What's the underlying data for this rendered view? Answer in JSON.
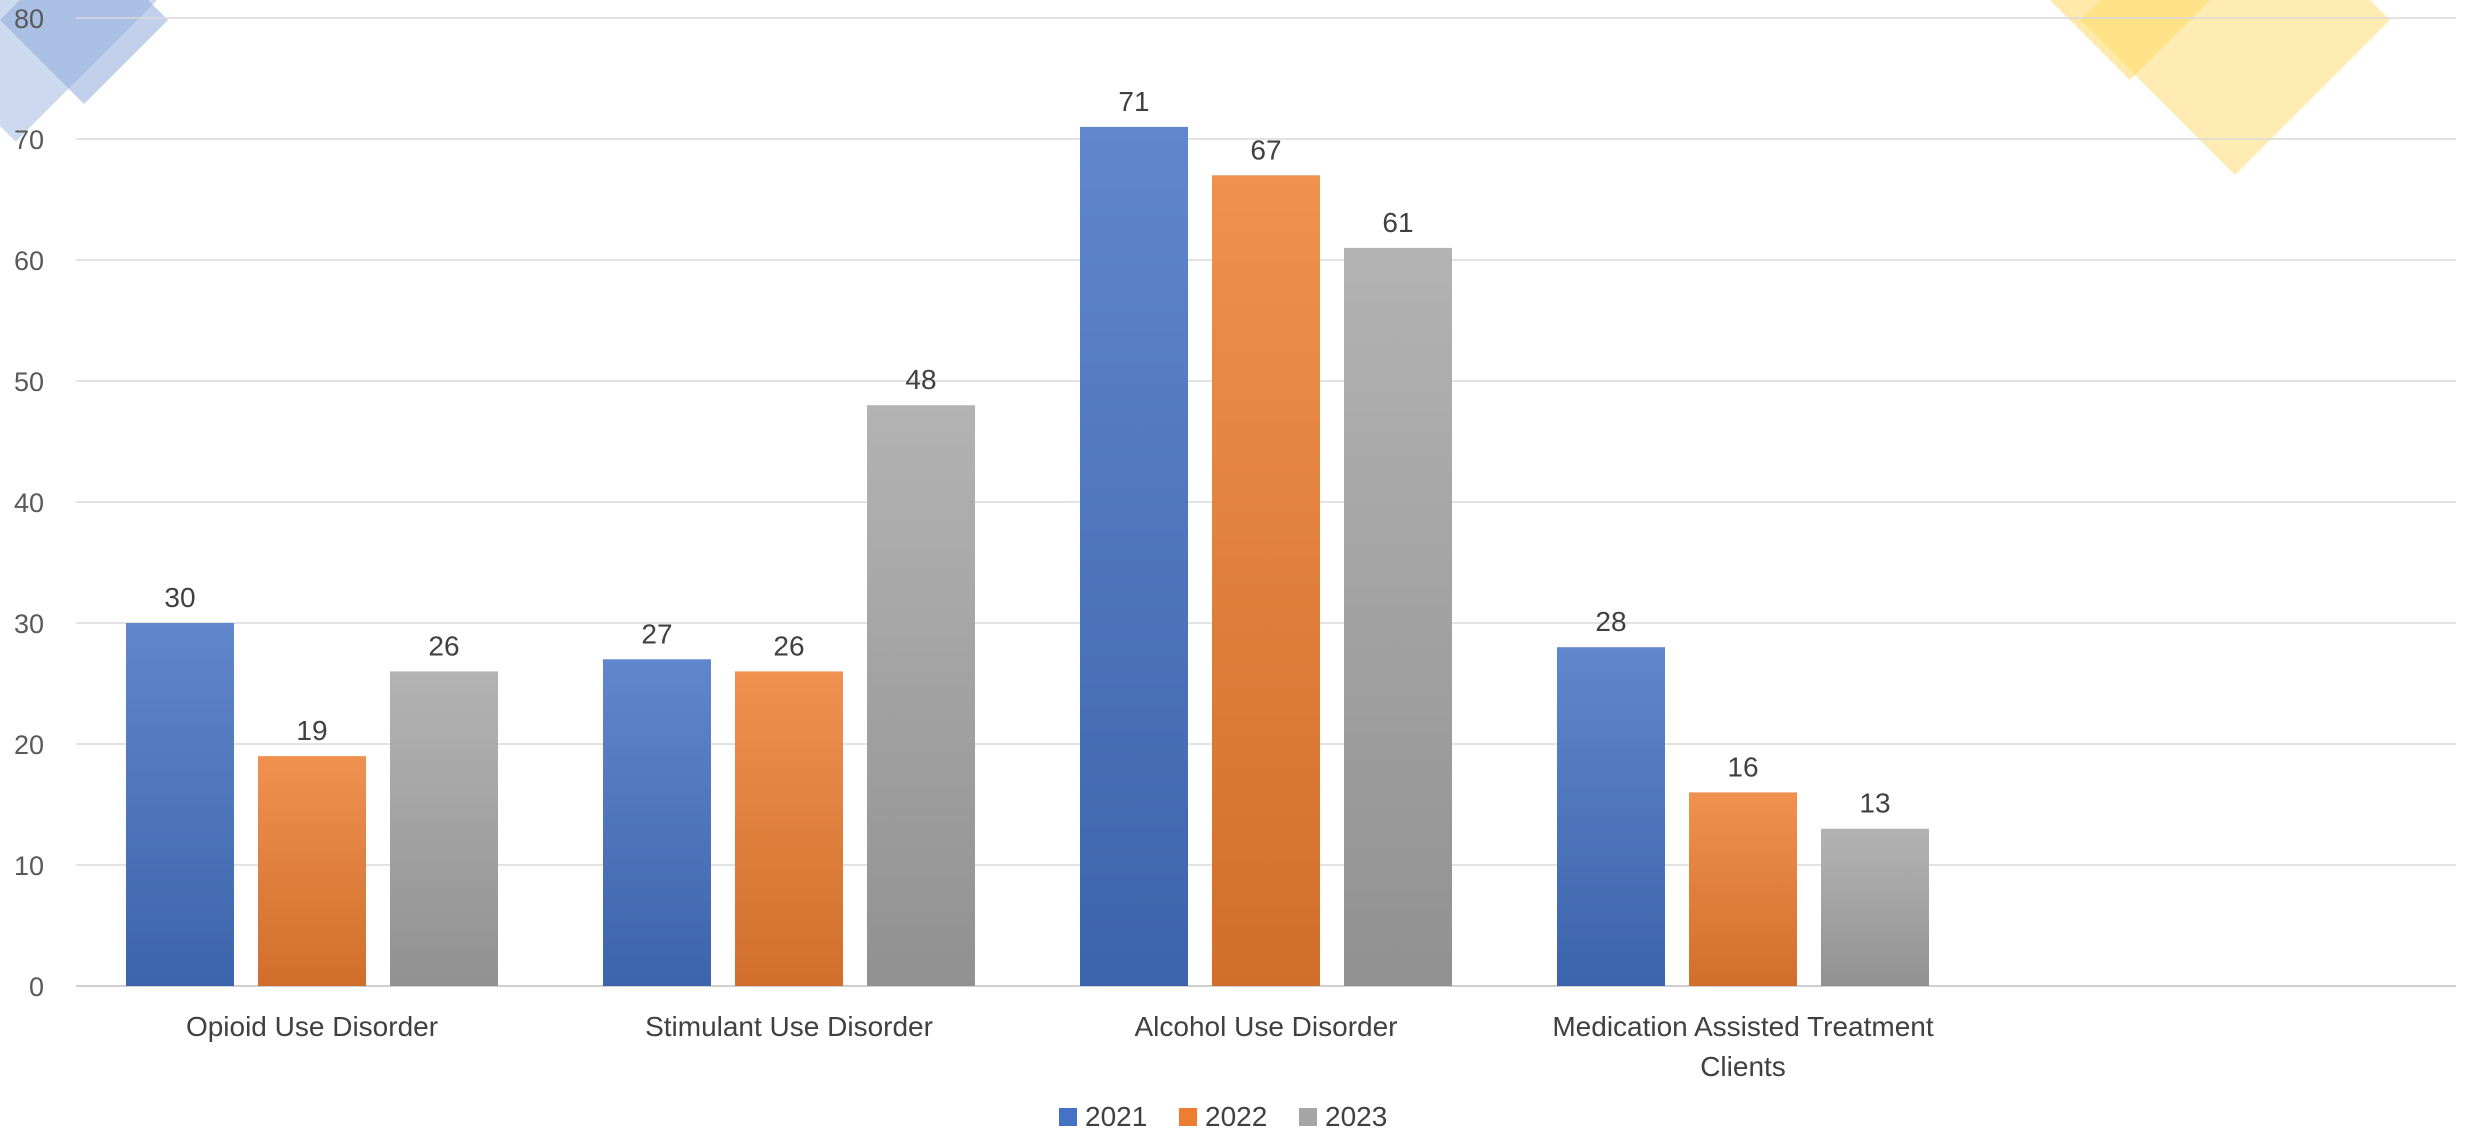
{
  "chart_data": {
    "type": "bar",
    "title": "",
    "xlabel": "",
    "ylabel": "",
    "ylim": [
      0,
      80
    ],
    "y_ticks": [
      0,
      10,
      20,
      30,
      40,
      50,
      60,
      70,
      80
    ],
    "grid": true,
    "legend_position": "bottom",
    "categories": [
      "Opioid Use Disorder",
      "Stimulant Use Disorder",
      "Alcohol Use Disorder",
      "Medication Assisted Treatment Clients"
    ],
    "series": [
      {
        "name": "2021",
        "values": [
          30,
          27,
          71,
          28
        ],
        "color": "#4472C4"
      },
      {
        "name": "2022",
        "values": [
          19,
          26,
          67,
          16
        ],
        "color": "#ED7D31"
      },
      {
        "name": "2023",
        "values": [
          26,
          48,
          61,
          13
        ],
        "color": "#A5A5A5"
      }
    ],
    "decoration_colors": [
      "#8FAADC",
      "#FFD966"
    ]
  }
}
